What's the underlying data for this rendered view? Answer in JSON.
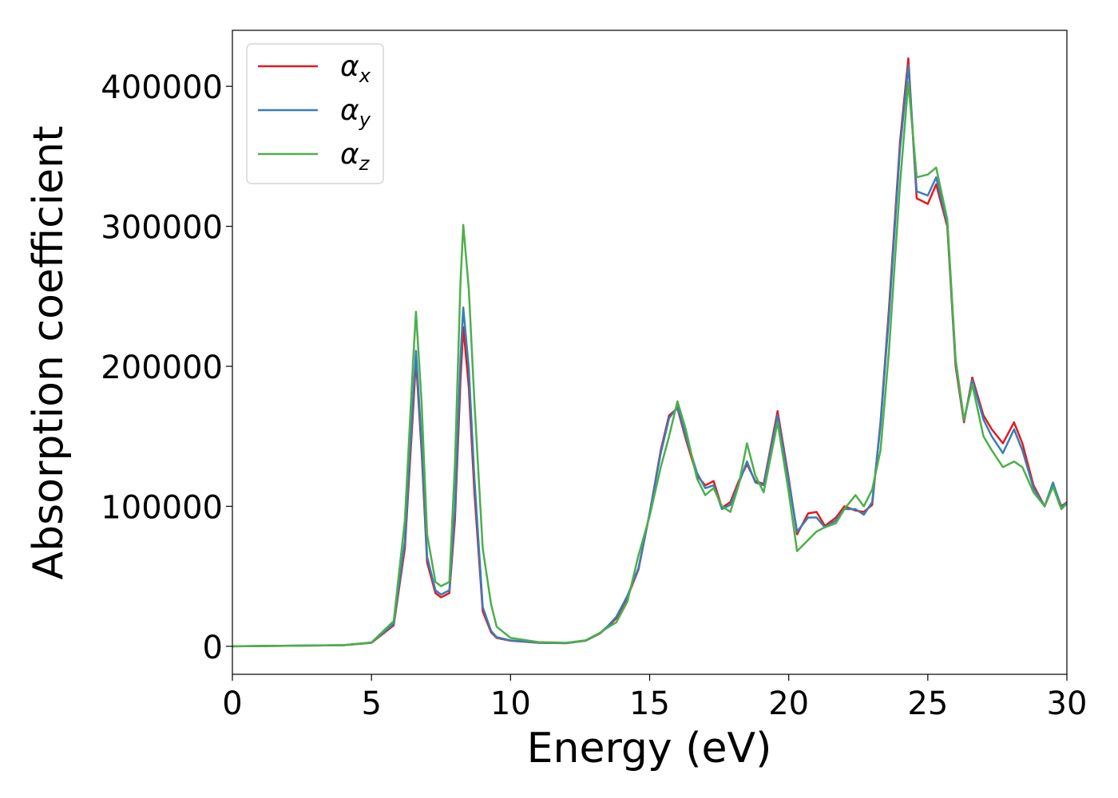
{
  "chart_data": {
    "type": "line",
    "xlabel": "Energy (eV)",
    "ylabel": "Absorption coefficient",
    "xlim": [
      0,
      30
    ],
    "ylim": [
      -20000,
      440000
    ],
    "xticks": [
      0,
      5,
      10,
      15,
      20,
      25,
      30
    ],
    "yticks": [
      0,
      100000,
      200000,
      300000,
      400000
    ],
    "legend_position": "top-left",
    "grid": false,
    "series": [
      {
        "name": "α",
        "subscript": "x",
        "color": "#e41a1c",
        "x": [
          0,
          4,
          5,
          5.8,
          6.2,
          6.5,
          6.6,
          6.8,
          7.0,
          7.3,
          7.5,
          7.8,
          8.0,
          8.2,
          8.3,
          8.5,
          8.7,
          9.0,
          9.3,
          9.5,
          10,
          11,
          12,
          12.7,
          13.2,
          13.5,
          13.8,
          14.2,
          14.6,
          15.0,
          15.4,
          15.7,
          16.0,
          16.3,
          16.7,
          17.0,
          17.3,
          17.6,
          17.9,
          18.2,
          18.5,
          18.8,
          19.1,
          19.6,
          20.0,
          20.3,
          20.7,
          21.0,
          21.3,
          21.7,
          22.0,
          22.4,
          22.7,
          23.0,
          23.3,
          23.6,
          24.0,
          24.3,
          24.6,
          25.0,
          25.3,
          25.7,
          26.0,
          26.3,
          26.6,
          27.0,
          27.3,
          27.7,
          28.1,
          28.4,
          28.8,
          29.2,
          29.5,
          29.8,
          30.0
        ],
        "y": [
          0,
          800,
          2500,
          15000,
          70000,
          170000,
          205000,
          140000,
          60000,
          38000,
          35000,
          38000,
          90000,
          190000,
          228000,
          185000,
          110000,
          25000,
          10000,
          6000,
          4000,
          2500,
          2200,
          4000,
          9000,
          14000,
          20000,
          35000,
          55000,
          95000,
          140000,
          165000,
          170000,
          148000,
          122000,
          115000,
          118000,
          99000,
          103000,
          118000,
          130000,
          118000,
          116000,
          168000,
          120000,
          80000,
          95000,
          96000,
          86000,
          92000,
          100000,
          97000,
          96000,
          101000,
          160000,
          240000,
          360000,
          420000,
          320000,
          316000,
          330000,
          300000,
          200000,
          160000,
          192000,
          165000,
          155000,
          145000,
          160000,
          145000,
          115000,
          100000,
          116000,
          100000,
          103000
        ]
      },
      {
        "name": "α",
        "subscript": "y",
        "color": "#377eb8",
        "x": [
          0,
          4,
          5,
          5.8,
          6.2,
          6.5,
          6.6,
          6.8,
          7.0,
          7.3,
          7.5,
          7.8,
          8.0,
          8.2,
          8.3,
          8.5,
          8.7,
          9.0,
          9.3,
          9.5,
          10,
          11,
          12,
          12.7,
          13.2,
          13.5,
          13.8,
          14.2,
          14.6,
          15.0,
          15.4,
          15.7,
          16.0,
          16.3,
          16.7,
          17.0,
          17.3,
          17.6,
          17.9,
          18.2,
          18.5,
          18.8,
          19.1,
          19.6,
          20.0,
          20.3,
          20.7,
          21.0,
          21.3,
          21.7,
          22.0,
          22.4,
          22.7,
          23.0,
          23.3,
          23.6,
          24.0,
          24.3,
          24.6,
          25.0,
          25.3,
          25.7,
          26.0,
          26.3,
          26.6,
          27.0,
          27.3,
          27.7,
          28.1,
          28.4,
          28.8,
          29.2,
          29.5,
          29.8,
          30.0
        ],
        "y": [
          0,
          800,
          2600,
          16000,
          75000,
          178000,
          211000,
          146000,
          64000,
          40000,
          37000,
          40000,
          98000,
          205000,
          242000,
          198000,
          120000,
          28000,
          11000,
          6500,
          4200,
          2600,
          2300,
          4100,
          9200,
          14500,
          21000,
          36000,
          56000,
          95000,
          138000,
          163000,
          171000,
          150000,
          124000,
          113000,
          115000,
          98000,
          101000,
          116000,
          132000,
          117000,
          115000,
          165000,
          118000,
          82000,
          92000,
          92000,
          85000,
          90000,
          98000,
          98000,
          94000,
          103000,
          158000,
          235000,
          355000,
          415000,
          325000,
          322000,
          335000,
          302000,
          203000,
          161000,
          190000,
          162000,
          150000,
          138000,
          155000,
          140000,
          113000,
          100000,
          117000,
          99000,
          103000
        ]
      },
      {
        "name": "α",
        "subscript": "z",
        "color": "#4daf4a",
        "x": [
          0,
          4,
          5,
          5.8,
          6.2,
          6.5,
          6.6,
          6.8,
          7.0,
          7.3,
          7.5,
          7.8,
          8.0,
          8.2,
          8.3,
          8.5,
          8.7,
          9.0,
          9.3,
          9.5,
          10,
          11,
          12,
          12.7,
          13.2,
          13.5,
          13.8,
          14.2,
          14.6,
          15.0,
          15.4,
          15.7,
          16.0,
          16.3,
          16.7,
          17.0,
          17.3,
          17.6,
          17.9,
          18.2,
          18.5,
          18.8,
          19.1,
          19.6,
          20.0,
          20.3,
          20.7,
          21.0,
          21.3,
          21.7,
          22.0,
          22.4,
          22.7,
          23.0,
          23.3,
          23.6,
          24.0,
          24.3,
          24.6,
          25.0,
          25.3,
          25.7,
          26.0,
          26.3,
          26.6,
          27.0,
          27.3,
          27.7,
          28.1,
          28.4,
          28.8,
          29.2,
          29.5,
          29.8,
          30.0
        ],
        "y": [
          0,
          800,
          2800,
          18000,
          90000,
          205000,
          239000,
          175000,
          80000,
          46000,
          43000,
          46000,
          130000,
          260000,
          301000,
          255000,
          175000,
          70000,
          30000,
          14000,
          6000,
          3000,
          2500,
          4300,
          9500,
          13500,
          17000,
          32000,
          65000,
          93000,
          128000,
          150000,
          175000,
          155000,
          120000,
          108000,
          113000,
          100000,
          96000,
          115000,
          145000,
          122000,
          110000,
          160000,
          110000,
          68000,
          76000,
          82000,
          85000,
          88000,
          98000,
          108000,
          100000,
          112000,
          140000,
          210000,
          330000,
          403000,
          335000,
          337000,
          342000,
          305000,
          205000,
          162000,
          187000,
          150000,
          140000,
          128000,
          132000,
          128000,
          110000,
          100000,
          114000,
          98000,
          102000
        ]
      }
    ]
  }
}
